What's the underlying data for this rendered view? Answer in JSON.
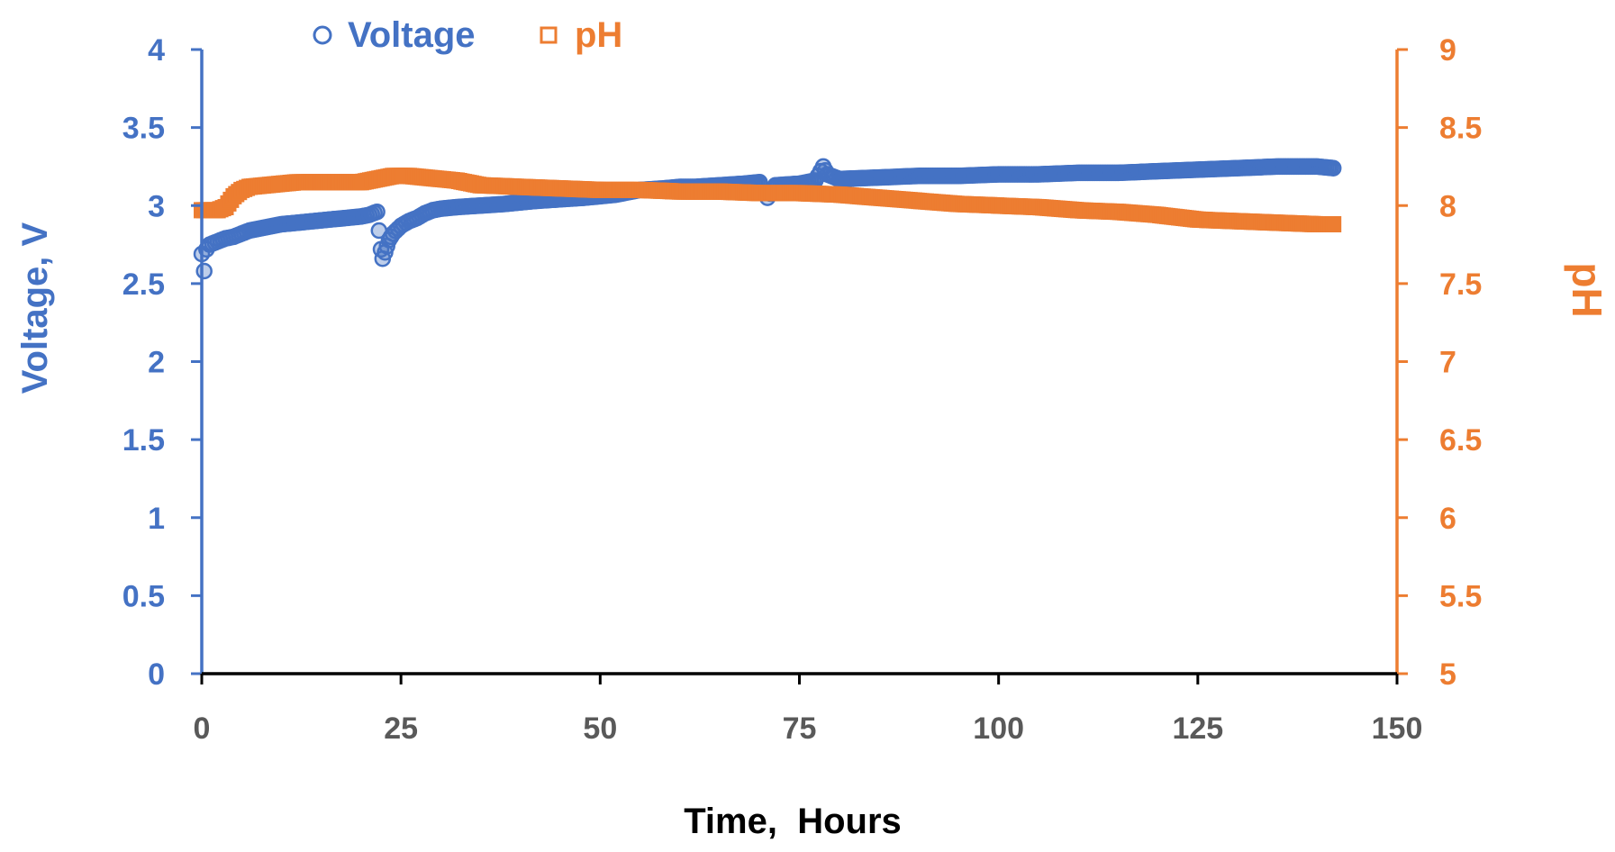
{
  "chart_data": {
    "type": "scatter",
    "title": "",
    "xlabel": "Time,  Hours",
    "ylabel": "Voltage, V",
    "y2label": "pH",
    "xlim": [
      0,
      150
    ],
    "ylim": [
      0,
      4
    ],
    "y2lim": [
      5,
      9
    ],
    "xticks": [
      "0",
      "25",
      "50",
      "75",
      "100",
      "125",
      "150"
    ],
    "yticks": [
      "0",
      "0.5",
      "1",
      "1.5",
      "2",
      "2.5",
      "3",
      "3.5",
      "4"
    ],
    "y2ticks": [
      "5",
      "5.5",
      "6",
      "6.5",
      "7",
      "7.5",
      "8",
      "8.5",
      "9"
    ],
    "legend": {
      "placement": "top-left",
      "entries": [
        {
          "label": "Voltage",
          "marker": "circle"
        },
        {
          "label": "pH",
          "marker": "square"
        }
      ]
    },
    "colors": {
      "voltage": "#4472C4",
      "ph": "#ED7D31",
      "axis": "#000000",
      "xticks": "#595959"
    },
    "grid": false,
    "series": [
      {
        "name": "Voltage",
        "axis": "left",
        "marker": "circle",
        "points": [
          [
            0,
            2.69
          ],
          [
            0.3,
            2.58
          ],
          [
            0.6,
            2.72
          ],
          [
            1,
            2.75
          ],
          [
            2,
            2.77
          ],
          [
            3,
            2.79
          ],
          [
            4,
            2.8
          ],
          [
            5,
            2.82
          ],
          [
            6,
            2.84
          ],
          [
            8,
            2.86
          ],
          [
            10,
            2.88
          ],
          [
            12,
            2.89
          ],
          [
            14,
            2.9
          ],
          [
            16,
            2.91
          ],
          [
            18,
            2.92
          ],
          [
            20,
            2.93
          ],
          [
            21,
            2.94
          ],
          [
            22,
            2.96
          ],
          [
            22.5,
            2.72
          ],
          [
            22.7,
            2.66
          ],
          [
            23,
            2.7
          ],
          [
            23.5,
            2.78
          ],
          [
            24,
            2.82
          ],
          [
            25,
            2.87
          ],
          [
            26,
            2.9
          ],
          [
            27,
            2.92
          ],
          [
            28,
            2.95
          ],
          [
            29,
            2.97
          ],
          [
            30,
            2.98
          ],
          [
            32,
            2.99
          ],
          [
            35,
            3.0
          ],
          [
            38,
            3.01
          ],
          [
            40,
            3.02
          ],
          [
            42,
            3.03
          ],
          [
            45,
            3.04
          ],
          [
            48,
            3.05
          ],
          [
            50,
            3.06
          ],
          [
            52,
            3.07
          ],
          [
            55,
            3.1
          ],
          [
            58,
            3.11
          ],
          [
            60,
            3.12
          ],
          [
            62,
            3.12
          ],
          [
            65,
            3.13
          ],
          [
            68,
            3.14
          ],
          [
            70,
            3.15
          ],
          [
            71,
            3.05
          ],
          [
            72,
            3.13
          ],
          [
            75,
            3.14
          ],
          [
            77,
            3.16
          ],
          [
            78,
            3.25
          ],
          [
            78.5,
            3.2
          ],
          [
            80,
            3.17
          ],
          [
            85,
            3.18
          ],
          [
            90,
            3.19
          ],
          [
            95,
            3.19
          ],
          [
            100,
            3.2
          ],
          [
            105,
            3.2
          ],
          [
            110,
            3.21
          ],
          [
            115,
            3.21
          ],
          [
            120,
            3.22
          ],
          [
            125,
            3.23
          ],
          [
            130,
            3.24
          ],
          [
            135,
            3.25
          ],
          [
            140,
            3.25
          ],
          [
            142,
            3.24
          ]
        ]
      },
      {
        "name": "pH",
        "axis": "right",
        "marker": "square",
        "points": [
          [
            0,
            7.97
          ],
          [
            1,
            7.97
          ],
          [
            2,
            7.97
          ],
          [
            3,
            7.99
          ],
          [
            4,
            8.06
          ],
          [
            5,
            8.1
          ],
          [
            6,
            8.12
          ],
          [
            8,
            8.13
          ],
          [
            10,
            8.14
          ],
          [
            12,
            8.15
          ],
          [
            15,
            8.15
          ],
          [
            18,
            8.15
          ],
          [
            20,
            8.15
          ],
          [
            22,
            8.17
          ],
          [
            24,
            8.19
          ],
          [
            26,
            8.19
          ],
          [
            28,
            8.18
          ],
          [
            30,
            8.17
          ],
          [
            32,
            8.16
          ],
          [
            35,
            8.13
          ],
          [
            40,
            8.12
          ],
          [
            45,
            8.11
          ],
          [
            50,
            8.1
          ],
          [
            55,
            8.1
          ],
          [
            60,
            8.09
          ],
          [
            65,
            8.09
          ],
          [
            70,
            8.08
          ],
          [
            75,
            8.08
          ],
          [
            80,
            8.07
          ],
          [
            85,
            8.05
          ],
          [
            90,
            8.03
          ],
          [
            95,
            8.01
          ],
          [
            100,
            8.0
          ],
          [
            105,
            7.99
          ],
          [
            110,
            7.97
          ],
          [
            115,
            7.96
          ],
          [
            120,
            7.94
          ],
          [
            125,
            7.91
          ],
          [
            130,
            7.9
          ],
          [
            135,
            7.89
          ],
          [
            140,
            7.88
          ],
          [
            142,
            7.88
          ]
        ]
      }
    ]
  }
}
